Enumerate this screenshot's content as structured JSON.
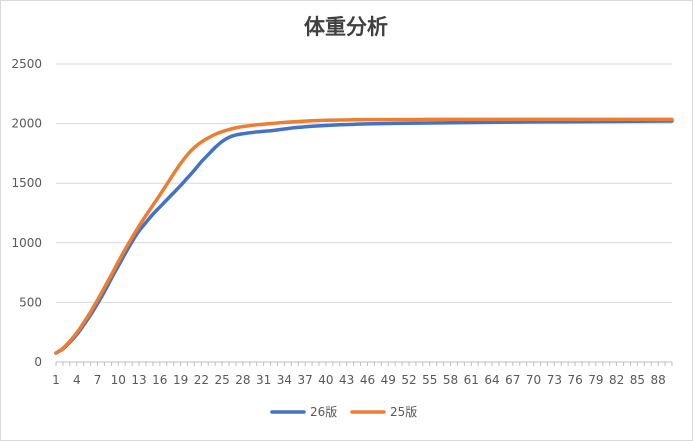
{
  "chart_data": {
    "type": "line",
    "title": "体重分析",
    "xlabel": "",
    "ylabel": "",
    "ylim": [
      0,
      2500
    ],
    "yticks": [
      0,
      500,
      1000,
      1500,
      2000,
      2500
    ],
    "xlim": [
      1,
      90
    ],
    "xticks": [
      1,
      4,
      7,
      10,
      13,
      16,
      19,
      22,
      25,
      28,
      31,
      34,
      37,
      40,
      43,
      46,
      49,
      52,
      55,
      58,
      61,
      64,
      67,
      70,
      73,
      76,
      79,
      82,
      85,
      88
    ],
    "grid": true,
    "legend_position": "bottom",
    "series": [
      {
        "name": "26版",
        "color": "#4472c4",
        "x": [
          1,
          2,
          3,
          4,
          5,
          6,
          7,
          8,
          9,
          10,
          11,
          12,
          13,
          14,
          15,
          16,
          17,
          18,
          19,
          20,
          21,
          22,
          23,
          24,
          25,
          26,
          27,
          28,
          30,
          32,
          34,
          36,
          38,
          40,
          42,
          44,
          46,
          50,
          55,
          60,
          65,
          70,
          75,
          80,
          85,
          90
        ],
        "values": [
          75,
          110,
          165,
          230,
          310,
          395,
          490,
          590,
          700,
          805,
          910,
          1010,
          1100,
          1170,
          1240,
          1300,
          1360,
          1420,
          1480,
          1545,
          1610,
          1680,
          1740,
          1800,
          1850,
          1885,
          1905,
          1915,
          1930,
          1940,
          1955,
          1968,
          1978,
          1984,
          1990,
          1994,
          1998,
          2002,
          2005,
          2008,
          2011,
          2014,
          2016,
          2018,
          2020,
          2022
        ]
      },
      {
        "name": "25版",
        "color": "#ed7d31",
        "x": [
          1,
          2,
          3,
          4,
          5,
          6,
          7,
          8,
          9,
          10,
          11,
          12,
          13,
          14,
          15,
          16,
          17,
          18,
          19,
          20,
          21,
          22,
          23,
          24,
          25,
          26,
          27,
          28,
          30,
          32,
          34,
          36,
          38,
          40,
          42,
          44,
          46,
          50,
          55,
          60,
          65,
          70,
          75,
          80,
          85,
          90
        ],
        "values": [
          75,
          115,
          175,
          245,
          330,
          420,
          520,
          625,
          730,
          840,
          945,
          1045,
          1140,
          1230,
          1315,
          1400,
          1490,
          1580,
          1665,
          1740,
          1800,
          1845,
          1880,
          1910,
          1932,
          1950,
          1965,
          1975,
          1990,
          2000,
          2010,
          2018,
          2024,
          2028,
          2030,
          2032,
          2033,
          2034,
          2035,
          2035,
          2035,
          2035,
          2035,
          2035,
          2035,
          2035
        ]
      }
    ]
  }
}
